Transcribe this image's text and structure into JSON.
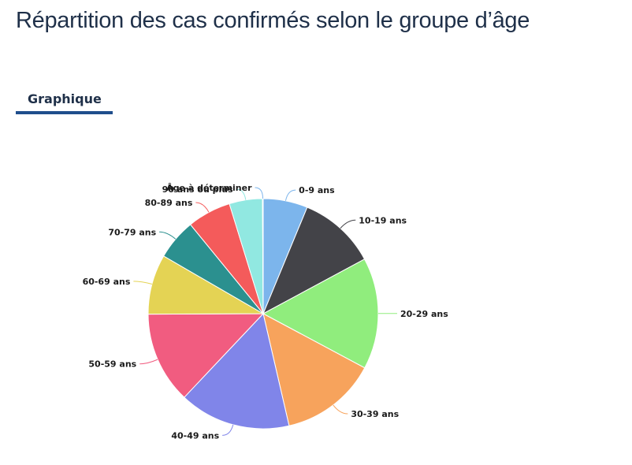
{
  "header": {
    "title": "Répartition des cas confirmés selon le groupe d’âge"
  },
  "tabs": [
    {
      "label": "Graphique",
      "active": true
    }
  ],
  "chart_data": {
    "type": "pie",
    "title": "",
    "categories": [
      "0-9 ans",
      "10-19 ans",
      "20-29 ans",
      "30-39 ans",
      "40-49 ans",
      "50-59 ans",
      "60-69 ans",
      "70-79 ans",
      "80-89 ans",
      "90 ans ou plus",
      "Âge à déterminer"
    ],
    "values": [
      6.3,
      11.0,
      15.8,
      13.7,
      15.8,
      13.0,
      8.5,
      5.8,
      6.2,
      4.7,
      0.1
    ],
    "colors": [
      "#7cb5ec",
      "#434348",
      "#90ed7d",
      "#f7a35c",
      "#8085e9",
      "#f15c80",
      "#e4d354",
      "#2b908f",
      "#f45b5b",
      "#91e8e1",
      "#7cb5ec"
    ]
  }
}
